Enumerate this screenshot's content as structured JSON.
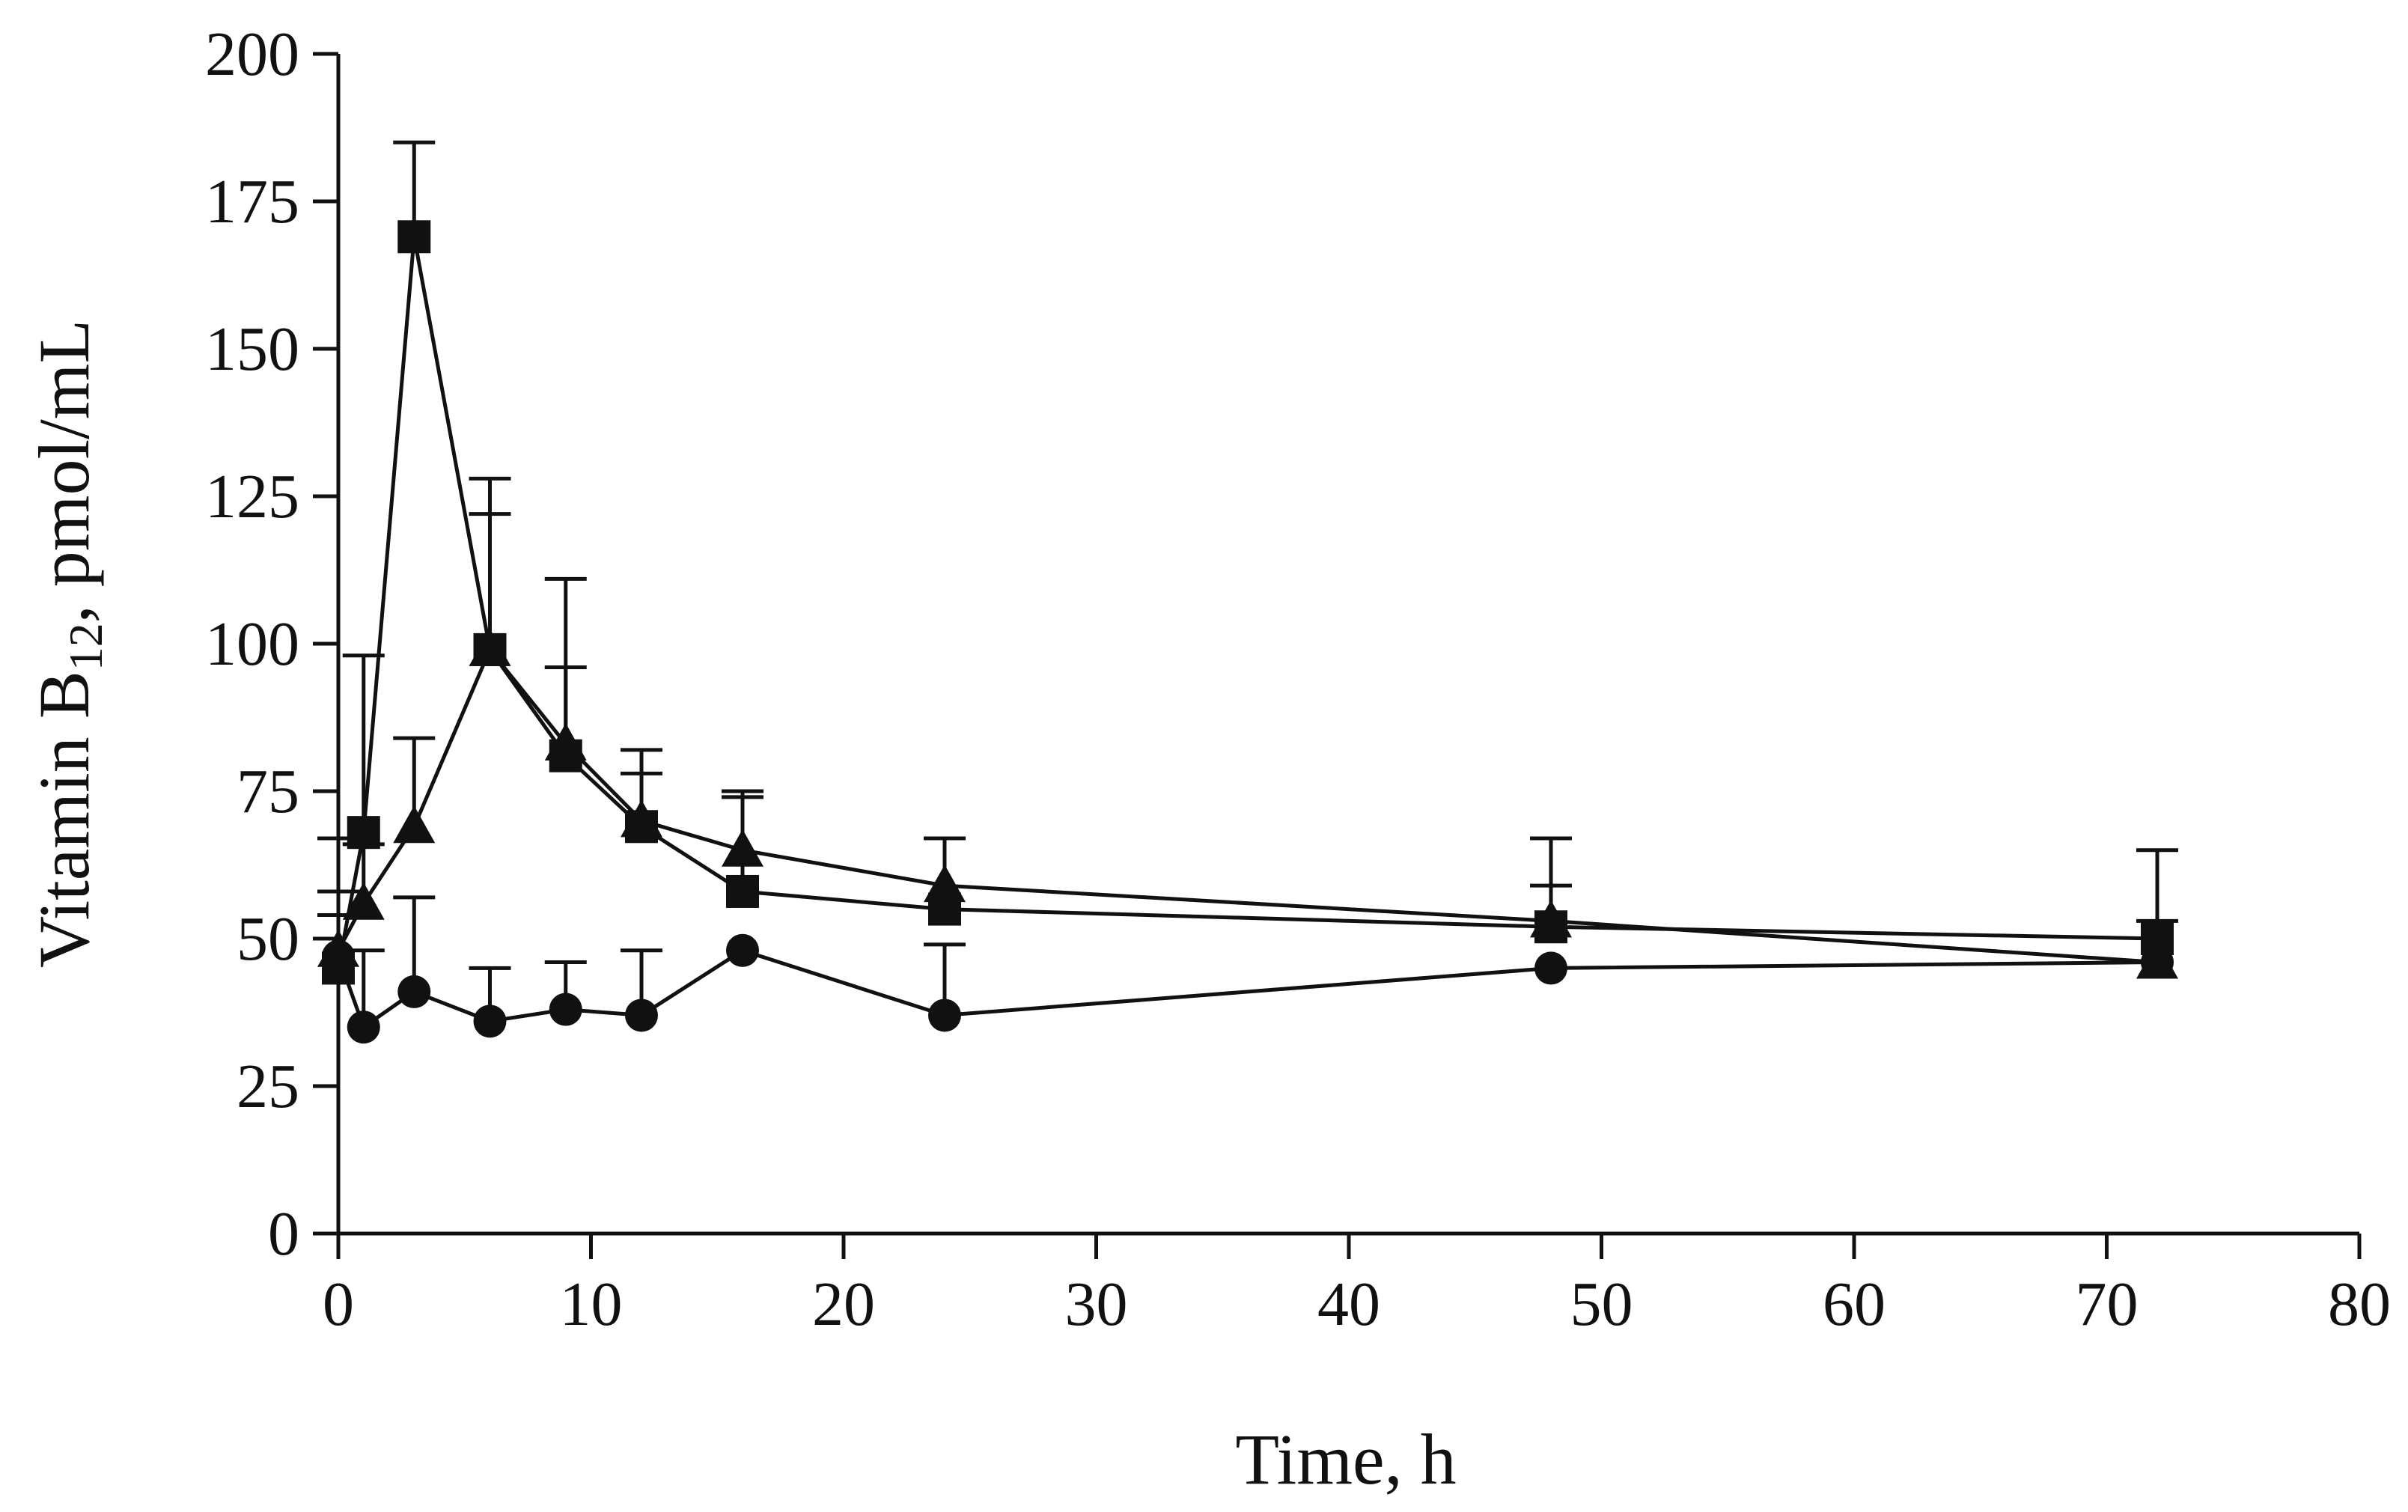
{
  "chart_data": {
    "type": "line",
    "title": "",
    "xlabel": "Time, h",
    "ylabel": {
      "main": "Vitamin B",
      "subscript": "12",
      "suffix": ", pmol/mL"
    },
    "xlim": [
      0,
      80
    ],
    "ylim": [
      0,
      200
    ],
    "xticks": [
      0,
      10,
      20,
      30,
      40,
      50,
      60,
      70,
      80
    ],
    "yticks": [
      0,
      25,
      50,
      75,
      100,
      125,
      150,
      175,
      200
    ],
    "xtick_labels": [
      "0",
      "10",
      "20",
      "30",
      "40",
      "50",
      "60",
      "70",
      "80"
    ],
    "ytick_labels": [
      "0",
      "25",
      "50",
      "75",
      "100",
      "125",
      "150",
      "175",
      "200"
    ],
    "grid": false,
    "legend": "none",
    "series": [
      {
        "name": "square",
        "marker": "square",
        "x": [
          0,
          1,
          3,
          6,
          9,
          12,
          16,
          24,
          48,
          72
        ],
        "y": [
          45,
          68,
          169,
          99,
          81,
          69,
          58,
          55,
          52,
          50
        ],
        "error_upper": [
          54,
          98,
          185,
          128,
          96,
          78,
          74,
          67,
          59,
          65
        ]
      },
      {
        "name": "triangle",
        "marker": "triangle",
        "x": [
          0,
          1,
          3,
          6,
          9,
          12,
          16,
          24,
          48,
          72
        ],
        "y": [
          48,
          56,
          69,
          99,
          83,
          70,
          65,
          59,
          53,
          46
        ],
        "error_upper": [
          58,
          66,
          84,
          122,
          111,
          82,
          75,
          67,
          67,
          53
        ]
      },
      {
        "name": "circle",
        "marker": "circle",
        "x": [
          0,
          1,
          3,
          6,
          9,
          12,
          16,
          24,
          48,
          72
        ],
        "y": [
          47,
          35,
          41,
          36,
          38,
          37,
          48,
          37,
          45,
          46
        ],
        "error_upper": [
          67,
          48,
          57,
          45,
          46,
          48,
          null,
          49,
          null,
          null
        ]
      }
    ]
  }
}
